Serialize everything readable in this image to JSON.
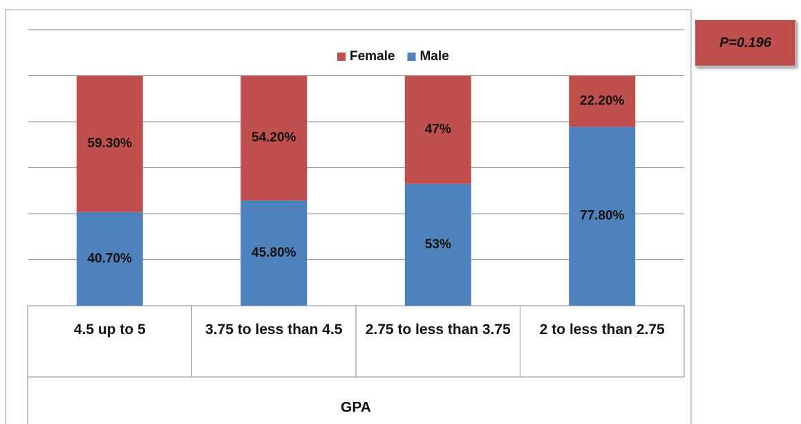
{
  "chart_data": {
    "type": "stacked_bar",
    "categories": [
      "4.5 up to 5",
      "3.75 to less than 4.5",
      "2.75 to less than 3.75",
      "2 to less than 2.75"
    ],
    "series": [
      {
        "name": "Male",
        "color": "#4f81bd",
        "values": [
          40.7,
          45.8,
          53,
          77.8
        ],
        "value_labels": [
          "40.70%",
          "45.80%",
          "53%",
          "77.80%"
        ]
      },
      {
        "name": "Female",
        "color": "#c0504d",
        "values": [
          59.3,
          54.2,
          47,
          22.2
        ],
        "value_labels": [
          "59.30%",
          "54.20%",
          "47%",
          "22.20%"
        ]
      }
    ],
    "xlabel": "GPA",
    "annotation": "P=0.196",
    "ylim": [
      0,
      120
    ],
    "yticks": [
      0,
      20,
      40,
      60,
      80,
      100,
      120
    ],
    "grid": true,
    "legend": "top"
  }
}
